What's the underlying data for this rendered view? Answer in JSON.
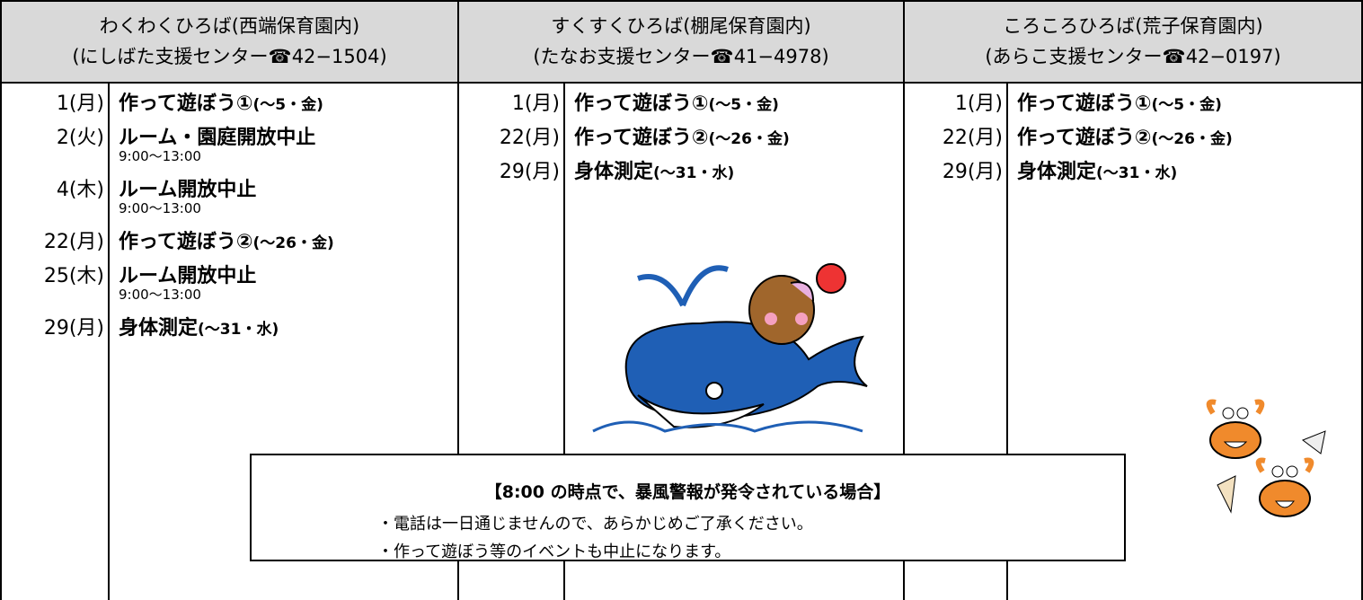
{
  "columns": [
    {
      "name": "わくわくひろば(西端保育園内)",
      "center": "(にしばた支援センター☎42−1504)",
      "entries": [
        {
          "date": "1(月)",
          "event": "作って遊ぼう①",
          "detail": "(～5・金)"
        },
        {
          "date": "2(火)",
          "event": "ルーム・園庭開放中止",
          "time": "9:00～13:00"
        },
        {
          "date": "4(木)",
          "event": "ルーム開放中止",
          "time": "9:00～13:00"
        },
        {
          "date": "22(月)",
          "event": "作って遊ぼう②",
          "detail": "(～26・金)"
        },
        {
          "date": "25(木)",
          "event": "ルーム開放中止",
          "time": "9:00～13:00"
        },
        {
          "date": "29(月)",
          "event": "身体測定",
          "detail": "(～31・水)"
        }
      ]
    },
    {
      "name": "すくすくひろば(棚尾保育園内)",
      "center": "(たなお支援センター☎41−4978)",
      "entries": [
        {
          "date": "1(月)",
          "event": "作って遊ぼう①",
          "detail": "(～5・金)"
        },
        {
          "date": "22(月)",
          "event": "作って遊ぼう②",
          "detail": "(～26・金)"
        },
        {
          "date": "29(月)",
          "event": "身体測定",
          "detail": "(～31・水)"
        }
      ]
    },
    {
      "name": "ころころひろば(荒子保育園内)",
      "center": "(あらこ支援センター☎42−0197)",
      "entries": [
        {
          "date": "1(月)",
          "event": "作って遊ぼう①",
          "detail": "(～5・金)"
        },
        {
          "date": "22(月)",
          "event": "作って遊ぼう②",
          "detail": "(～26・金)"
        },
        {
          "date": "29(月)",
          "event": "身体測定",
          "detail": "(～31・水)"
        }
      ]
    }
  ],
  "notice": {
    "title": "【8:00 の時点で、暴風警報が発令されている場合】",
    "bullets": [
      "・電話は一日通じませんので、あらかじめご了承ください。",
      "・作って遊ぼう等のイベントも中止になります。"
    ]
  }
}
